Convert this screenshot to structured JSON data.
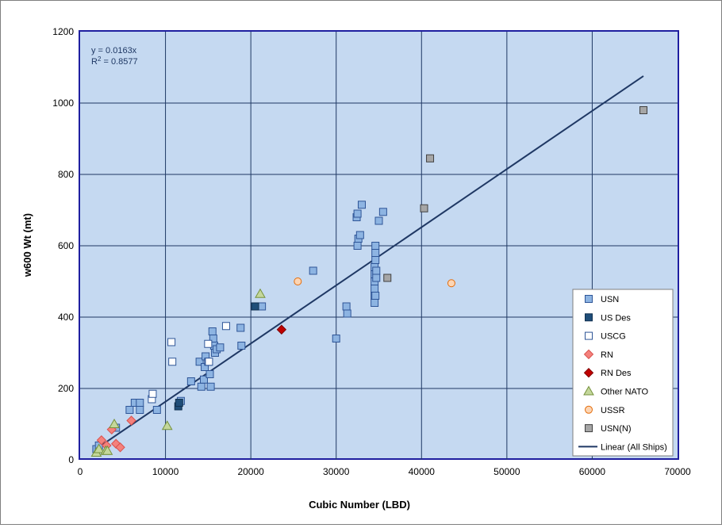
{
  "chart_data": {
    "type": "scatter",
    "title": "",
    "xlabel": "Cubic Number (LBD)",
    "ylabel": "w600 Wt (mt)",
    "xlim": [
      0,
      70000
    ],
    "ylim": [
      0,
      1200
    ],
    "xticks": [
      "0",
      "10000",
      "20000",
      "30000",
      "40000",
      "50000",
      "60000",
      "70000"
    ],
    "yticks": [
      "0",
      "200",
      "400",
      "600",
      "800",
      "1000",
      "1200"
    ],
    "grid": true,
    "legend_position": "bottom-right",
    "annotation": {
      "equation": "y = 0.0163x",
      "r2_prefix": "R",
      "r2_sup": "2",
      "r2_value": " = 0.8577"
    },
    "trendline": {
      "name": "Linear (All Ships)",
      "slope": 0.0163,
      "x": [
        1800,
        66000
      ],
      "color": "#1f3864"
    },
    "series": [
      {
        "name": "USN",
        "marker": "square",
        "fill": "#8db4e2",
        "stroke": "#2e5597",
        "points": [
          [
            1900,
            30
          ],
          [
            2200,
            40
          ],
          [
            4200,
            90
          ],
          [
            5800,
            140
          ],
          [
            6400,
            160
          ],
          [
            7000,
            160
          ],
          [
            7000,
            140
          ],
          [
            9000,
            140
          ],
          [
            11800,
            165
          ],
          [
            13000,
            220
          ],
          [
            14000,
            275
          ],
          [
            14200,
            205
          ],
          [
            14500,
            225
          ],
          [
            14600,
            260
          ],
          [
            14700,
            290
          ],
          [
            15000,
            275
          ],
          [
            15200,
            240
          ],
          [
            15300,
            205
          ],
          [
            15500,
            360
          ],
          [
            15600,
            340
          ],
          [
            15700,
            320
          ],
          [
            15800,
            300
          ],
          [
            16000,
            310
          ],
          [
            16400,
            315
          ],
          [
            18800,
            370
          ],
          [
            18900,
            320
          ],
          [
            21300,
            430
          ],
          [
            27300,
            530
          ],
          [
            30000,
            340
          ],
          [
            31200,
            430
          ],
          [
            31300,
            410
          ],
          [
            32400,
            680
          ],
          [
            32500,
            690
          ],
          [
            32500,
            600
          ],
          [
            32600,
            620
          ],
          [
            32800,
            630
          ],
          [
            33000,
            715
          ],
          [
            35000,
            670
          ],
          [
            35500,
            695
          ],
          [
            34500,
            440
          ],
          [
            34500,
            460
          ],
          [
            34500,
            480
          ],
          [
            34500,
            500
          ],
          [
            34500,
            520
          ],
          [
            34500,
            540
          ],
          [
            34600,
            560
          ],
          [
            34600,
            580
          ],
          [
            34600,
            600
          ],
          [
            34700,
            530
          ],
          [
            34700,
            510
          ],
          [
            34600,
            460
          ]
        ]
      },
      {
        "name": "US Des",
        "marker": "square",
        "fill": "#1f4e79",
        "stroke": "#10304f",
        "points": [
          [
            11500,
            150
          ],
          [
            11600,
            160
          ],
          [
            20500,
            430
          ]
        ]
      },
      {
        "name": "USCG",
        "marker": "square",
        "fill": "#ffffff",
        "stroke": "#2e5597",
        "points": [
          [
            8400,
            170
          ],
          [
            8500,
            185
          ],
          [
            10700,
            330
          ],
          [
            10800,
            275
          ],
          [
            15000,
            325
          ],
          [
            15100,
            275
          ],
          [
            17100,
            375
          ]
        ]
      },
      {
        "name": "RN",
        "marker": "diamond",
        "fill": "#f4817c",
        "stroke": "#d9534f",
        "points": [
          [
            2500,
            55
          ],
          [
            3100,
            40
          ],
          [
            3700,
            85
          ],
          [
            4200,
            45
          ],
          [
            4700,
            35
          ],
          [
            6000,
            110
          ]
        ]
      },
      {
        "name": "RN Des",
        "marker": "diamond",
        "fill": "#c00000",
        "stroke": "#800000",
        "points": [
          [
            23600,
            365
          ]
        ]
      },
      {
        "name": "Other NATO",
        "marker": "triangle",
        "fill": "#c4d79b",
        "stroke": "#76923c",
        "points": [
          [
            1900,
            20
          ],
          [
            2200,
            30
          ],
          [
            3000,
            25
          ],
          [
            3200,
            25
          ],
          [
            4000,
            100
          ],
          [
            10200,
            95
          ],
          [
            21100,
            465
          ]
        ]
      },
      {
        "name": "USSR",
        "marker": "circle",
        "fill": "#fcd5b4",
        "stroke": "#e46c0a",
        "points": [
          [
            25500,
            500
          ],
          [
            43500,
            495
          ]
        ]
      },
      {
        "name": "USN(N)",
        "marker": "square",
        "fill": "#a6a6a6",
        "stroke": "#404040",
        "points": [
          [
            36000,
            510
          ],
          [
            40300,
            705
          ],
          [
            41000,
            845
          ],
          [
            66000,
            980
          ]
        ]
      }
    ]
  }
}
